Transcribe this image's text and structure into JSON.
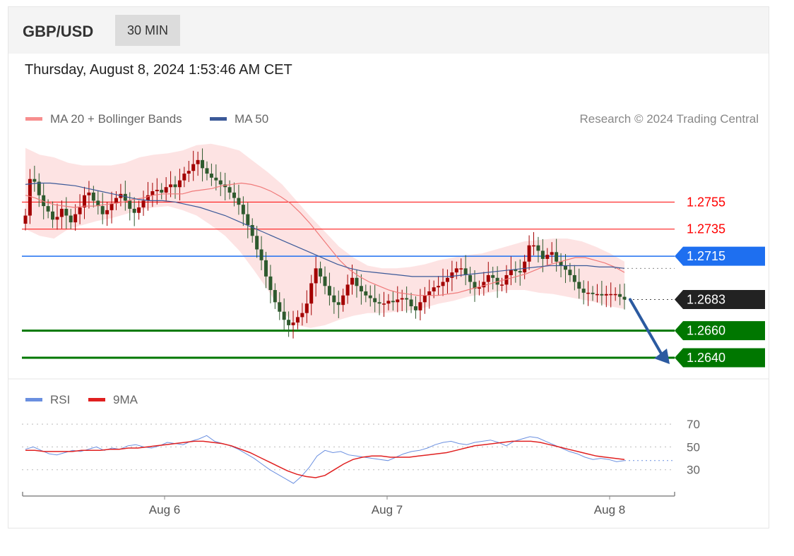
{
  "header": {
    "symbol": "GBP/USD",
    "timeframe": "30 MIN",
    "datetime": "Thursday, August 8, 2024 1:53:46 AM CET"
  },
  "legend": {
    "ma20_bb": "MA 20 + Bollinger Bands",
    "ma50": "MA 50",
    "credit": "Research © 2024 Trading Central",
    "rsi": "RSI",
    "rsi_ma": "9MA"
  },
  "colors": {
    "bollinger_fill": "#fde0e0",
    "ma20": "#f07a7a",
    "ma50": "#3b5998",
    "bullish": "#a30000",
    "bearish": "#2e5a2e",
    "resistance": "#ff0000",
    "pivot": "#1e6ff0",
    "support": "#007700",
    "last": "#222222",
    "arrow": "#2b5aa0",
    "rsi": "#6a8fe0",
    "rsi_ma": "#e02020"
  },
  "chart_data": [
    {
      "type": "candlestick",
      "title": "GBP/USD 30 MIN",
      "x_ticks": [
        "Aug 6",
        "Aug 7",
        "Aug 8"
      ],
      "ylim": [
        1.2628,
        1.28
      ],
      "levels": [
        {
          "label": "1.2755",
          "value": 1.2755,
          "kind": "resistance"
        },
        {
          "label": "1.2735",
          "value": 1.2735,
          "kind": "resistance"
        },
        {
          "label": "1.2715",
          "value": 1.2715,
          "kind": "pivot"
        },
        {
          "label": "1.2683",
          "value": 1.2683,
          "kind": "last"
        },
        {
          "label": "1.2660",
          "value": 1.266,
          "kind": "support"
        },
        {
          "label": "1.2640",
          "value": 1.264,
          "kind": "support"
        }
      ],
      "close": [
        1.2745,
        1.2772,
        1.277,
        1.276,
        1.2752,
        1.2748,
        1.2742,
        1.2744,
        1.275,
        1.2745,
        1.274,
        1.2746,
        1.2751,
        1.276,
        1.2762,
        1.2756,
        1.2752,
        1.2746,
        1.2749,
        1.2754,
        1.2758,
        1.2761,
        1.2756,
        1.275,
        1.2747,
        1.2751,
        1.2756,
        1.276,
        1.2763,
        1.2764,
        1.2762,
        1.2766,
        1.2768,
        1.2766,
        1.2771,
        1.2776,
        1.2778,
        1.2783,
        1.2786,
        1.278,
        1.2776,
        1.2773,
        1.2771,
        1.2768,
        1.2766,
        1.2762,
        1.2758,
        1.2753,
        1.2746,
        1.2738,
        1.273,
        1.272,
        1.2712,
        1.27,
        1.269,
        1.2681,
        1.2674,
        1.2668,
        1.2664,
        1.2666,
        1.267,
        1.2673,
        1.268,
        1.2695,
        1.2706,
        1.27,
        1.2693,
        1.2686,
        1.2681,
        1.2679,
        1.2686,
        1.2694,
        1.2699,
        1.2693,
        1.2689,
        1.2686,
        1.2684,
        1.2681,
        1.268,
        1.268,
        1.2682,
        1.2681,
        1.2683,
        1.2684,
        1.2683,
        1.2678,
        1.2675,
        1.2681,
        1.2686,
        1.2689,
        1.2692,
        1.2693,
        1.2696,
        1.2699,
        1.2703,
        1.2706,
        1.2706,
        1.2701,
        1.2696,
        1.2691,
        1.2692,
        1.2696,
        1.2701,
        1.2699,
        1.2694,
        1.2694,
        1.2701,
        1.2705,
        1.2704,
        1.2703,
        1.2711,
        1.2723,
        1.2723,
        1.2719,
        1.2713,
        1.2716,
        1.2718,
        1.2711,
        1.2708,
        1.2705,
        1.2701,
        1.2696,
        1.2691,
        1.2688,
        1.2688,
        1.2687,
        1.2687,
        1.2686,
        1.2687,
        1.2687,
        1.2687,
        1.2685,
        1.2683
      ],
      "ma20": [
        1.276,
        1.2758,
        1.2755,
        1.2753,
        1.2752,
        1.2751,
        1.2752,
        1.2752,
        1.2753,
        1.2754,
        1.2755,
        1.2757,
        1.2758,
        1.276,
        1.2761,
        1.2761,
        1.2761,
        1.2763,
        1.2764,
        1.2765,
        1.2767,
        1.2768,
        1.2769,
        1.2768,
        1.2766,
        1.2763,
        1.2759,
        1.2754,
        1.2747,
        1.2739,
        1.273,
        1.2721,
        1.2712,
        1.2705,
        1.27,
        1.2696,
        1.2693,
        1.269,
        1.2688,
        1.2687,
        1.2686,
        1.2686,
        1.2686,
        1.2687,
        1.2688,
        1.269,
        1.2692,
        1.2694,
        1.2696,
        1.2698,
        1.27,
        1.2702,
        1.2705,
        1.2708,
        1.271,
        1.2712,
        1.2714,
        1.2714,
        1.2712,
        1.271,
        1.2707,
        1.2703
      ],
      "ma50": [
        1.2768,
        1.2769,
        1.2769,
        1.2768,
        1.2767,
        1.2765,
        1.2763,
        1.2761,
        1.2759,
        1.2757,
        1.2756,
        1.2756,
        1.2755,
        1.2753,
        1.2751,
        1.2748,
        1.2745,
        1.2741,
        1.2737,
        1.2733,
        1.2729,
        1.2725,
        1.2721,
        1.2717,
        1.2713,
        1.2709,
        1.2706,
        1.2704,
        1.2703,
        1.2702,
        1.2701,
        1.27,
        1.27,
        1.27,
        1.27,
        1.2701,
        1.2702,
        1.2703,
        1.2704,
        1.2705,
        1.2706,
        1.2707,
        1.2708,
        1.2708,
        1.2708,
        1.2708,
        1.2707,
        1.2707,
        1.2706
      ],
      "bb_upper": [
        1.2795,
        1.279,
        1.2788,
        1.2784,
        1.2782,
        1.2782,
        1.2782,
        1.2784,
        1.2788,
        1.279,
        1.2791,
        1.2793,
        1.2797,
        1.2798,
        1.2796,
        1.2793,
        1.2785,
        1.2777,
        1.2768,
        1.2756,
        1.2744,
        1.2733,
        1.2722,
        1.2714,
        1.2708,
        1.2706,
        1.2706,
        1.2707,
        1.2709,
        1.2712,
        1.2714,
        1.2716,
        1.2717,
        1.272,
        1.2723,
        1.2726,
        1.2727,
        1.2728,
        1.2728,
        1.2726,
        1.2722,
        1.2717,
        1.2711
      ],
      "bb_lower": [
        1.2735,
        1.273,
        1.2728,
        1.2735,
        1.2738,
        1.2741,
        1.2743,
        1.2746,
        1.2749,
        1.2751,
        1.2752,
        1.2749,
        1.2745,
        1.2738,
        1.273,
        1.2719,
        1.2705,
        1.269,
        1.2674,
        1.2664,
        1.2662,
        1.2664,
        1.2668,
        1.2671,
        1.2673,
        1.2673,
        1.2674,
        1.2675,
        1.2677,
        1.268,
        1.2682,
        1.2685,
        1.2687,
        1.2689,
        1.269,
        1.269,
        1.2688,
        1.2687,
        1.2685,
        1.2683,
        1.2681,
        1.2678,
        1.2676
      ]
    },
    {
      "type": "line",
      "series_names": [
        "RSI",
        "9MA"
      ],
      "y_ticks": [
        "70",
        "50",
        "30"
      ],
      "ylim": [
        10,
        80
      ],
      "rsi": [
        48,
        50,
        47,
        44,
        43,
        45,
        47,
        46,
        48,
        50,
        47,
        49,
        48,
        51,
        52,
        50,
        49,
        51,
        54,
        53,
        52,
        55,
        57,
        60,
        55,
        53,
        51,
        48,
        44,
        40,
        35,
        30,
        26,
        22,
        18,
        24,
        32,
        42,
        47,
        45,
        46,
        43,
        42,
        41,
        40,
        39,
        38,
        41,
        44,
        46,
        47,
        49,
        52,
        54,
        55,
        53,
        52,
        54,
        55,
        56,
        54,
        51,
        55,
        57,
        59,
        58,
        55,
        52,
        49,
        46,
        44,
        41,
        39,
        40,
        39,
        37,
        38
      ],
      "rsi_ma": [
        47,
        47,
        46,
        46,
        46,
        46,
        47,
        47,
        47,
        48,
        48,
        49,
        49,
        50,
        51,
        52,
        53,
        54,
        55,
        55,
        54,
        53,
        51,
        48,
        45,
        41,
        37,
        33,
        29,
        26,
        24,
        23,
        25,
        30,
        35,
        39,
        41,
        42,
        42,
        41,
        41,
        41,
        42,
        43,
        44,
        45,
        47,
        49,
        51,
        52,
        53,
        54,
        55,
        55,
        55,
        54,
        52,
        50,
        48,
        46,
        44,
        42,
        41,
        40,
        39
      ]
    }
  ]
}
